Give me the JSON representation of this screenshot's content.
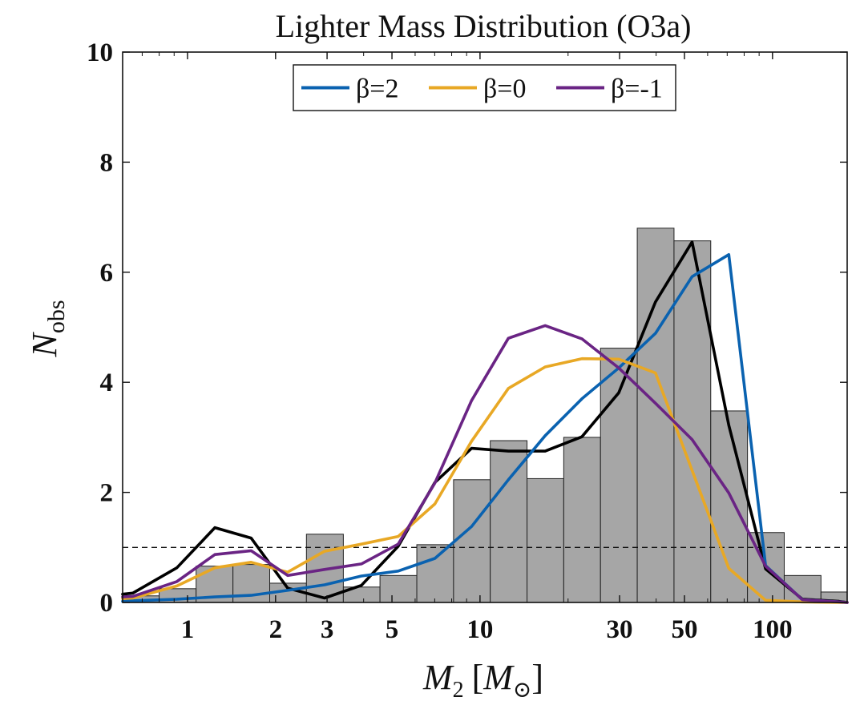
{
  "chart_data": {
    "type": "histogram+line",
    "title": "Lighter Mass Distribution (O3a)",
    "xlabel": "M₂ [M⊙]",
    "xlabel_main": "M",
    "xlabel_sub": "2",
    "xlabel_unit_open": "[",
    "xlabel_unit": "M",
    "xlabel_unit_sub": "⊙",
    "xlabel_unit_close": "]",
    "ylabel": "N_obs",
    "ylabel_main": "N",
    "ylabel_sub": "obs",
    "xscale": "log",
    "xlim": [
      0.6,
      180
    ],
    "ylim": [
      0,
      10
    ],
    "xticks": [
      {
        "value": 1,
        "label": "1"
      },
      {
        "value": 2,
        "label": "2"
      },
      {
        "value": 3,
        "label": "3"
      },
      {
        "value": 5,
        "label": "5"
      },
      {
        "value": 10,
        "label": "10"
      },
      {
        "value": 30,
        "label": "30"
      },
      {
        "value": 50,
        "label": "50"
      },
      {
        "value": 100,
        "label": "100"
      }
    ],
    "yticks": [
      {
        "value": 0,
        "label": "0"
      },
      {
        "value": 2,
        "label": "2"
      },
      {
        "value": 4,
        "label": "4"
      },
      {
        "value": 6,
        "label": "6"
      },
      {
        "value": 8,
        "label": "8"
      },
      {
        "value": 10,
        "label": "10"
      }
    ],
    "reference_line": {
      "y": 1,
      "style": "dashed"
    },
    "histogram": {
      "color": "#a6a6a6",
      "bins": [
        {
          "lo": 0.6,
          "hi": 0.8,
          "value": 0.12
        },
        {
          "lo": 0.8,
          "hi": 1.07,
          "value": 0.25
        },
        {
          "lo": 1.07,
          "hi": 1.43,
          "value": 0.66
        },
        {
          "lo": 1.43,
          "hi": 1.91,
          "value": 0.69
        },
        {
          "lo": 1.91,
          "hi": 2.55,
          "value": 0.35
        },
        {
          "lo": 2.55,
          "hi": 3.41,
          "value": 1.24
        },
        {
          "lo": 3.41,
          "hi": 4.55,
          "value": 0.28
        },
        {
          "lo": 4.55,
          "hi": 6.08,
          "value": 0.49
        },
        {
          "lo": 6.08,
          "hi": 8.12,
          "value": 1.05
        },
        {
          "lo": 8.12,
          "hi": 10.84,
          "value": 2.23
        },
        {
          "lo": 10.84,
          "hi": 14.48,
          "value": 2.94
        },
        {
          "lo": 14.48,
          "hi": 19.33,
          "value": 2.25
        },
        {
          "lo": 19.33,
          "hi": 25.82,
          "value": 3.0
        },
        {
          "lo": 25.82,
          "hi": 34.48,
          "value": 4.62
        },
        {
          "lo": 34.48,
          "hi": 46.05,
          "value": 6.8
        },
        {
          "lo": 46.05,
          "hi": 61.49,
          "value": 6.57
        },
        {
          "lo": 61.49,
          "hi": 82.12,
          "value": 3.48
        },
        {
          "lo": 82.12,
          "hi": 109.66,
          "value": 1.27
        },
        {
          "lo": 109.66,
          "hi": 146.45,
          "value": 0.49
        },
        {
          "lo": 146.45,
          "hi": 195.58,
          "value": 0.19
        }
      ]
    },
    "series": [
      {
        "name": "observed",
        "color": "#000000",
        "in_legend": false,
        "x": [
          0.6,
          0.65,
          0.92,
          1.24,
          1.65,
          2.2,
          2.94,
          3.93,
          5.25,
          7.01,
          9.36,
          12.5,
          16.7,
          22.3,
          29.8,
          39.8,
          53.1,
          70.9,
          94.7,
          126.5,
          168.9,
          180
        ],
        "y": [
          0.15,
          0.17,
          0.63,
          1.36,
          1.17,
          0.26,
          0.08,
          0.31,
          1.02,
          2.18,
          2.8,
          2.75,
          2.75,
          3.01,
          3.81,
          5.46,
          6.55,
          3.22,
          0.61,
          0.06,
          0.02,
          0.0
        ]
      },
      {
        "name": "β=2",
        "color": "#0a62b0",
        "in_legend": true,
        "x": [
          0.6,
          0.65,
          0.92,
          1.24,
          1.65,
          2.2,
          2.94,
          3.93,
          5.25,
          7.01,
          9.36,
          12.5,
          16.7,
          22.3,
          29.8,
          39.8,
          53.1,
          70.9,
          94.7,
          126.5,
          168.9,
          180
        ],
        "y": [
          0.02,
          0.03,
          0.06,
          0.1,
          0.13,
          0.22,
          0.32,
          0.48,
          0.57,
          0.8,
          1.38,
          2.23,
          3.03,
          3.7,
          4.26,
          4.89,
          5.92,
          6.32,
          0.67,
          0.05,
          0.01,
          0.0
        ]
      },
      {
        "name": "β=0",
        "color": "#e8a825",
        "in_legend": true,
        "x": [
          0.6,
          0.65,
          0.92,
          1.24,
          1.65,
          2.2,
          2.94,
          3.93,
          5.25,
          7.01,
          9.36,
          12.5,
          16.7,
          22.3,
          29.8,
          39.8,
          53.1,
          70.9,
          94.7,
          126.5,
          168.9,
          180
        ],
        "y": [
          0.07,
          0.08,
          0.3,
          0.63,
          0.73,
          0.55,
          0.93,
          1.06,
          1.2,
          1.79,
          2.93,
          3.89,
          4.28,
          4.43,
          4.42,
          4.17,
          2.4,
          0.62,
          0.04,
          0.01,
          0.0,
          0.0
        ]
      },
      {
        "name": "β=-1",
        "color": "#6a2484",
        "in_legend": true,
        "x": [
          0.6,
          0.65,
          0.92,
          1.24,
          1.65,
          2.2,
          2.94,
          3.93,
          5.25,
          7.01,
          9.36,
          12.5,
          16.7,
          22.3,
          29.8,
          39.8,
          53.1,
          70.9,
          94.7,
          126.5,
          168.9,
          180
        ],
        "y": [
          0.1,
          0.11,
          0.38,
          0.87,
          0.94,
          0.49,
          0.6,
          0.7,
          1.06,
          2.17,
          3.67,
          4.8,
          5.03,
          4.79,
          4.26,
          3.62,
          2.96,
          1.99,
          0.66,
          0.05,
          0.01,
          0.0
        ]
      }
    ],
    "legend": {
      "position": "top-center",
      "entries": [
        "β=2",
        "β=0",
        "β=-1"
      ]
    },
    "grid": false
  }
}
